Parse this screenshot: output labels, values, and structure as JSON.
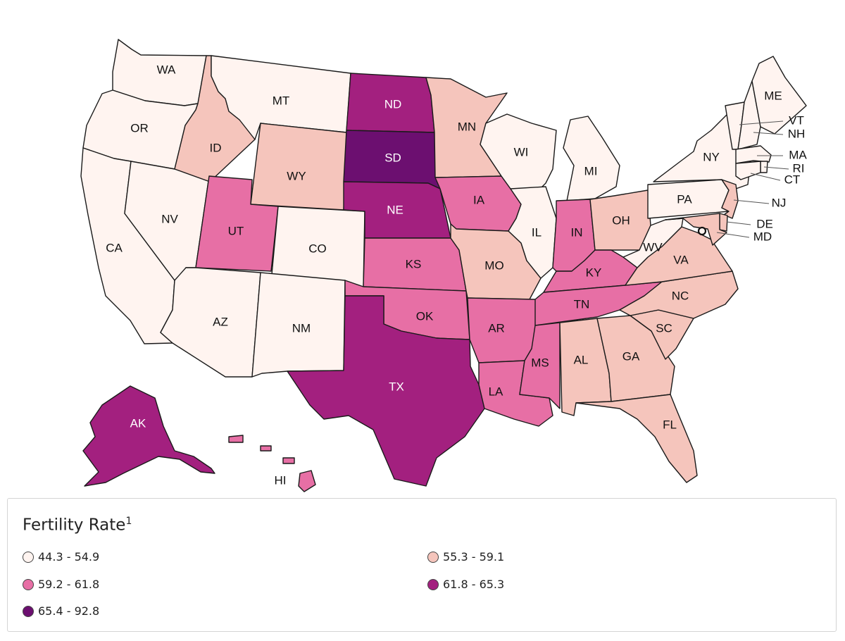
{
  "legend": {
    "title": "Fertility Rate",
    "footnote": "1",
    "bins": [
      {
        "label": "44.3 - 54.9",
        "color": "#fff4f0"
      },
      {
        "label": "55.3 - 59.1",
        "color": "#f5c5bc"
      },
      {
        "label": "59.2 - 61.8",
        "color": "#e76fa5"
      },
      {
        "label": "61.8 - 65.3",
        "color": "#a3207f"
      },
      {
        "label": "65.4 - 92.8",
        "color": "#6c0f70"
      }
    ]
  },
  "states": [
    {
      "abbr": "WA",
      "bin": 0
    },
    {
      "abbr": "OR",
      "bin": 0
    },
    {
      "abbr": "CA",
      "bin": 0
    },
    {
      "abbr": "NV",
      "bin": 0
    },
    {
      "abbr": "ID",
      "bin": 1
    },
    {
      "abbr": "MT",
      "bin": 0
    },
    {
      "abbr": "WY",
      "bin": 1
    },
    {
      "abbr": "UT",
      "bin": 2
    },
    {
      "abbr": "AZ",
      "bin": 0
    },
    {
      "abbr": "CO",
      "bin": 0
    },
    {
      "abbr": "NM",
      "bin": 0
    },
    {
      "abbr": "ND",
      "bin": 3
    },
    {
      "abbr": "SD",
      "bin": 4
    },
    {
      "abbr": "NE",
      "bin": 3
    },
    {
      "abbr": "KS",
      "bin": 2
    },
    {
      "abbr": "OK",
      "bin": 2
    },
    {
      "abbr": "TX",
      "bin": 3
    },
    {
      "abbr": "MN",
      "bin": 1
    },
    {
      "abbr": "IA",
      "bin": 2
    },
    {
      "abbr": "MO",
      "bin": 1
    },
    {
      "abbr": "AR",
      "bin": 2
    },
    {
      "abbr": "LA",
      "bin": 2
    },
    {
      "abbr": "WI",
      "bin": 0
    },
    {
      "abbr": "IL",
      "bin": 0
    },
    {
      "abbr": "MI",
      "bin": 0
    },
    {
      "abbr": "IN",
      "bin": 2
    },
    {
      "abbr": "OH",
      "bin": 1
    },
    {
      "abbr": "KY",
      "bin": 2
    },
    {
      "abbr": "TN",
      "bin": 2
    },
    {
      "abbr": "MS",
      "bin": 2
    },
    {
      "abbr": "AL",
      "bin": 1
    },
    {
      "abbr": "GA",
      "bin": 1
    },
    {
      "abbr": "FL",
      "bin": 1
    },
    {
      "abbr": "SC",
      "bin": 1
    },
    {
      "abbr": "NC",
      "bin": 1
    },
    {
      "abbr": "VA",
      "bin": 1
    },
    {
      "abbr": "WV",
      "bin": 0
    },
    {
      "abbr": "PA",
      "bin": 0
    },
    {
      "abbr": "NY",
      "bin": 0
    },
    {
      "abbr": "VT",
      "bin": 0
    },
    {
      "abbr": "NH",
      "bin": 0
    },
    {
      "abbr": "ME",
      "bin": 0
    },
    {
      "abbr": "MA",
      "bin": 0
    },
    {
      "abbr": "RI",
      "bin": 0
    },
    {
      "abbr": "CT",
      "bin": 0
    },
    {
      "abbr": "NJ",
      "bin": 1
    },
    {
      "abbr": "DE",
      "bin": 1
    },
    {
      "abbr": "MD",
      "bin": 1
    },
    {
      "abbr": "DC",
      "bin": 0
    },
    {
      "abbr": "AK",
      "bin": 3
    },
    {
      "abbr": "HI",
      "bin": 2
    }
  ]
}
